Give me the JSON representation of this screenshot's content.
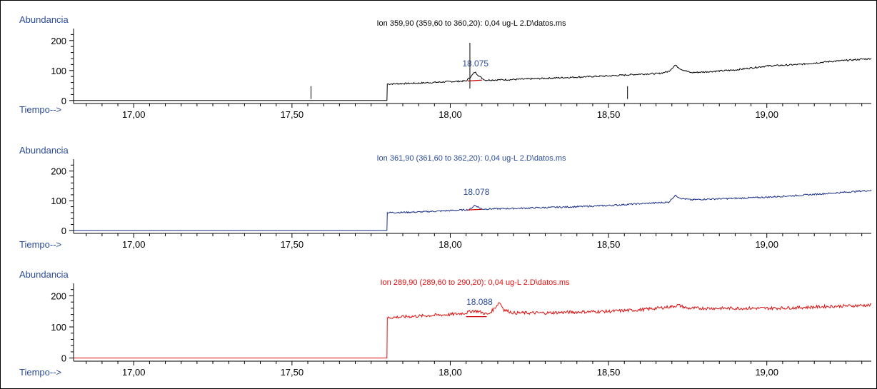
{
  "y_axis_label": "Abundancia",
  "x_axis_label": "Tiempo-->",
  "colors": {
    "axis_labels": "#2a4b9b",
    "baseline_marker": "#cc0000",
    "peak_label": "#2a4b9b"
  },
  "chart_data": [
    {
      "type": "line",
      "title": "Ion 359,90 (359,60 to 360,20): 0,04 ug-L 2.D\\datos.ms",
      "title_color": "#000000",
      "trace_color": "#000000",
      "xlabel": "Tiempo-->",
      "ylabel": "Abundancia",
      "xlim": [
        16.81,
        19.33
      ],
      "ylim": [
        -10,
        240
      ],
      "x_ticks": [
        "17,00",
        "17,50",
        "18,00",
        "18,50",
        "19,00"
      ],
      "x_tick_values": [
        17.0,
        17.5,
        18.0,
        18.5,
        19.0
      ],
      "y_ticks": [
        "0",
        "100",
        "200"
      ],
      "y_tick_values": [
        0,
        100,
        200
      ],
      "grid": false,
      "series": [
        {
          "values": [
            [
              16.81,
              0
            ],
            [
              17.8,
              0
            ],
            [
              17.801,
              55
            ],
            [
              17.9,
              58
            ],
            [
              18.0,
              63
            ],
            [
              18.05,
              65
            ],
            [
              18.065,
              80
            ],
            [
              18.078,
              95
            ],
            [
              18.095,
              78
            ],
            [
              18.11,
              68
            ],
            [
              18.2,
              70
            ],
            [
              18.3,
              74
            ],
            [
              18.4,
              78
            ],
            [
              18.5,
              82
            ],
            [
              18.6,
              88
            ],
            [
              18.66,
              90
            ],
            [
              18.69,
              97
            ],
            [
              18.71,
              118
            ],
            [
              18.73,
              104
            ],
            [
              18.76,
              93
            ],
            [
              18.8,
              95
            ],
            [
              18.9,
              102
            ],
            [
              19.0,
              115
            ],
            [
              19.1,
              120
            ],
            [
              19.2,
              130
            ],
            [
              19.33,
              140
            ]
          ]
        }
      ],
      "peak": {
        "label": "18.075",
        "rt": 18.075,
        "baseline": [
          [
            18.055,
            65
          ],
          [
            18.1,
            68
          ]
        ]
      },
      "markers": [
        17.56,
        18.062,
        18.56
      ]
    },
    {
      "type": "line",
      "title": "Ion 361,90 (361,60 to 362,20): 0,04 ug-L 2.D\\datos.ms",
      "title_color": "#2a4b9b",
      "trace_color": "#1a2f8a",
      "xlabel": "Tiempo-->",
      "ylabel": "Abundancia",
      "xlim": [
        16.81,
        19.33
      ],
      "ylim": [
        -10,
        240
      ],
      "x_ticks": [
        "17,00",
        "17,50",
        "18,00",
        "18,50",
        "19,00"
      ],
      "x_tick_values": [
        17.0,
        17.5,
        18.0,
        18.5,
        19.0
      ],
      "y_ticks": [
        "0",
        "100",
        "200"
      ],
      "y_tick_values": [
        0,
        100,
        200
      ],
      "grid": false,
      "series": [
        {
          "values": [
            [
              16.81,
              0
            ],
            [
              17.8,
              0
            ],
            [
              17.801,
              60
            ],
            [
              17.9,
              62
            ],
            [
              18.0,
              67
            ],
            [
              18.06,
              70
            ],
            [
              18.078,
              85
            ],
            [
              18.1,
              72
            ],
            [
              18.2,
              74
            ],
            [
              18.3,
              77
            ],
            [
              18.4,
              80
            ],
            [
              18.5,
              84
            ],
            [
              18.6,
              90
            ],
            [
              18.69,
              95
            ],
            [
              18.71,
              118
            ],
            [
              18.73,
              108
            ],
            [
              18.76,
              103
            ],
            [
              18.8,
              105
            ],
            [
              18.9,
              108
            ],
            [
              19.0,
              112
            ],
            [
              19.1,
              118
            ],
            [
              19.2,
              125
            ],
            [
              19.33,
              135
            ]
          ]
        }
      ],
      "peak": {
        "label": "18.078",
        "rt": 18.078,
        "baseline": [
          [
            18.055,
            69
          ],
          [
            18.1,
            71
          ]
        ]
      },
      "markers": []
    },
    {
      "type": "line",
      "title": "Ion 289,90 (289,60 to 290,20): 0,04 ug-L 2.D\\datos.ms",
      "title_color": "#e01010",
      "trace_color": "#e01010",
      "xlabel": "Tiempo-->",
      "ylabel": "Abundancia",
      "xlim": [
        16.81,
        19.33
      ],
      "ylim": [
        -10,
        240
      ],
      "x_ticks": [
        "17,00",
        "17,50",
        "18,00",
        "18,50",
        "19,00"
      ],
      "x_tick_values": [
        17.0,
        17.5,
        18.0,
        18.5,
        19.0
      ],
      "y_ticks": [
        "0",
        "100",
        "200"
      ],
      "y_tick_values": [
        0,
        100,
        200
      ],
      "grid": false,
      "series": [
        {
          "values": [
            [
              16.81,
              0
            ],
            [
              17.8,
              0
            ],
            [
              17.801,
              130
            ],
            [
              17.9,
              135
            ],
            [
              18.0,
              140
            ],
            [
              18.05,
              145
            ],
            [
              18.07,
              152
            ],
            [
              18.088,
              150
            ],
            [
              18.12,
              140
            ],
            [
              18.14,
              160
            ],
            [
              18.155,
              180
            ],
            [
              18.17,
              155
            ],
            [
              18.2,
              145
            ],
            [
              18.3,
              145
            ],
            [
              18.4,
              148
            ],
            [
              18.5,
              150
            ],
            [
              18.6,
              155
            ],
            [
              18.7,
              165
            ],
            [
              18.72,
              170
            ],
            [
              18.75,
              160
            ],
            [
              18.8,
              160
            ],
            [
              18.9,
              160
            ],
            [
              19.0,
              160
            ],
            [
              19.1,
              162
            ],
            [
              19.2,
              166
            ],
            [
              19.33,
              170
            ]
          ]
        }
      ],
      "peak": {
        "label": "18.088",
        "rt": 18.088,
        "baseline": [
          [
            18.05,
            133
          ],
          [
            18.115,
            133
          ]
        ]
      },
      "markers": []
    }
  ]
}
